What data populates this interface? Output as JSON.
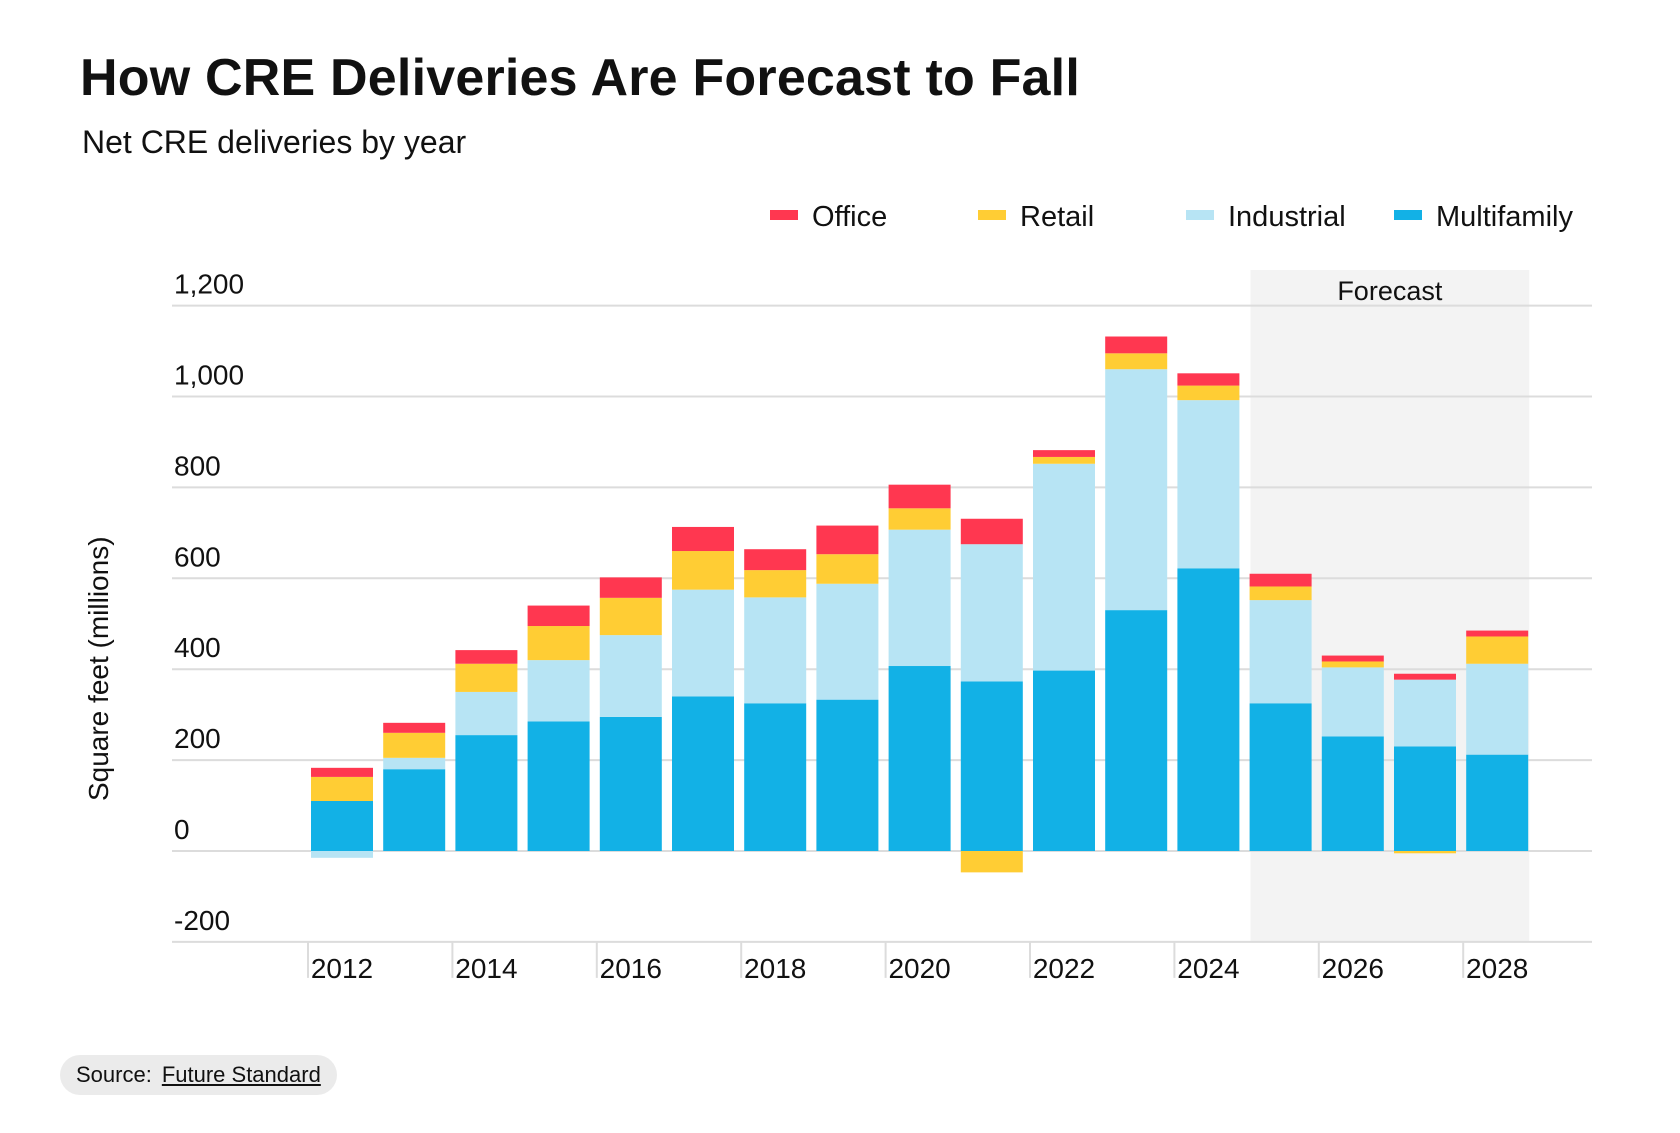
{
  "header": {
    "title": "How CRE Deliveries Are Forecast to Fall",
    "subtitle": "Net CRE deliveries by year"
  },
  "footer": {
    "source_label": "Source:",
    "source_link": "Future Standard"
  },
  "chart_data": {
    "type": "bar",
    "stacked": true,
    "title": "How CRE Deliveries Are Forecast to Fall",
    "subtitle": "Net CRE deliveries by year",
    "xlabel": "",
    "ylabel": "Square feet (millions)",
    "ylim": [
      -200,
      1200
    ],
    "yticks": [
      -200,
      0,
      200,
      400,
      600,
      800,
      1000,
      1200
    ],
    "ytick_labels": [
      "-200",
      "0",
      "200",
      "400",
      "600",
      "800",
      "1,000",
      "1,200"
    ],
    "categories": [
      "2012",
      "2013",
      "2014",
      "2015",
      "2016",
      "2017",
      "2018",
      "2019",
      "2020",
      "2021",
      "2022",
      "2023",
      "2024",
      "2025",
      "2026",
      "2027",
      "2028"
    ],
    "xtick_labels": [
      "2012",
      "2014",
      "2016",
      "2018",
      "2020",
      "2022",
      "2024",
      "2026",
      "2028"
    ],
    "grid": true,
    "legend_position": "top-right",
    "forecast": {
      "label": "Forecast",
      "from": "2025",
      "to": "2028",
      "color": "#f3f3f3"
    },
    "series": [
      {
        "name": "Multifamily",
        "color": "#12b1e6",
        "values": [
          110,
          180,
          255,
          285,
          295,
          340,
          325,
          333,
          407,
          373,
          397,
          530,
          622,
          325,
          252,
          230,
          212
        ]
      },
      {
        "name": "Industrial",
        "color": "#b7e4f4",
        "values": [
          -15,
          25,
          95,
          135,
          180,
          235,
          233,
          255,
          300,
          302,
          455,
          530,
          370,
          227,
          152,
          147,
          200
        ]
      },
      {
        "name": "Retail",
        "color": "#ffcd34",
        "values": [
          53,
          55,
          62,
          75,
          82,
          85,
          60,
          65,
          47,
          -47,
          15,
          35,
          32,
          30,
          13,
          -5,
          60
        ]
      },
      {
        "name": "Office",
        "color": "#ff3750",
        "values": [
          20,
          22,
          30,
          45,
          45,
          53,
          46,
          63,
          52,
          56,
          15,
          37,
          27,
          28,
          13,
          13,
          13
        ]
      }
    ],
    "legend_order": [
      "Office",
      "Retail",
      "Industrial",
      "Multifamily"
    ]
  }
}
